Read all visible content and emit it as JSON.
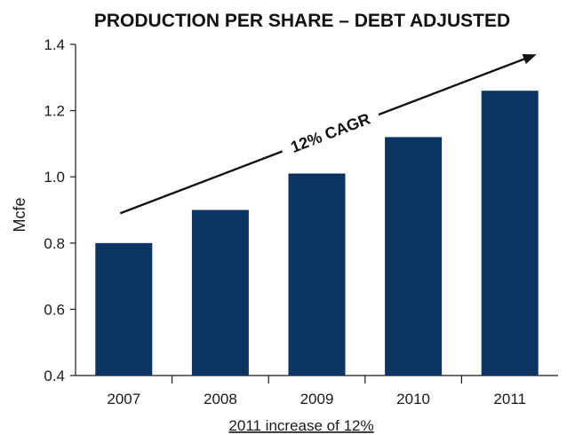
{
  "chart_data": {
    "type": "bar",
    "title": "PRODUCTION PER SHARE – DEBT ADJUSTED",
    "ylabel": "Mcfe",
    "xlabel": "",
    "categories": [
      "2007",
      "2008",
      "2009",
      "2010",
      "2011"
    ],
    "values": [
      0.8,
      0.9,
      1.01,
      1.12,
      1.26
    ],
    "ylim": [
      0.4,
      1.4
    ],
    "yticks": [
      "0.4",
      "0.6",
      "0.8",
      "1.0",
      "1.2",
      "1.4"
    ],
    "ytick_values": [
      0.4,
      0.6,
      0.8,
      1.0,
      1.2,
      1.4
    ],
    "bar_color": "#0b3463",
    "grid": false,
    "annotation": {
      "text": "12% CAGR",
      "start": {
        "category": "2007",
        "value": 0.89
      },
      "end": {
        "category": "2011",
        "value": 1.37
      }
    },
    "footnote": "2011 increase of 12%"
  }
}
